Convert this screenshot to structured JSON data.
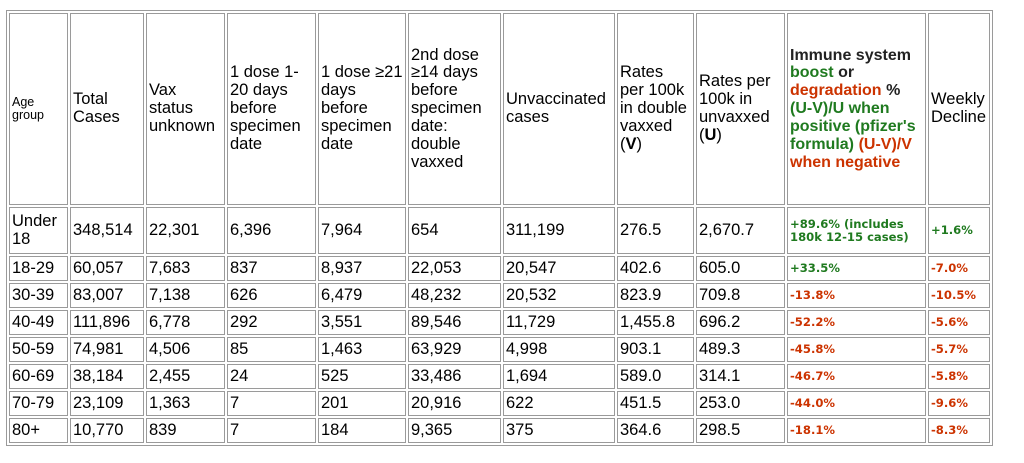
{
  "headers": {
    "age_group": "Age group",
    "total_cases": "Total Cases",
    "vax_unknown": "Vax status unknown",
    "dose1_early": "1 dose 1-20 days before specimen date",
    "dose1_late": "1 dose ≥21 days before specimen date",
    "dose2": "2nd dose ≥14 days before specimen date: double vaxxed",
    "unvaccinated": "Unvaccinated cases",
    "rate_v_prefix": "Rates per 100k in double vaxxed (",
    "rate_v_letter": "V",
    "rate_v_suffix": ")",
    "rate_u_prefix": "Rates per 100k in unvaxxed (",
    "rate_u_letter": "U",
    "rate_u_suffix": ")",
    "immune_1": "Immune system",
    "immune_2": "boost",
    "immune_3": "or",
    "immune_4": "degradation",
    "immune_5": "%",
    "immune_6": "(U-V)/U when positive (pfizer's formula)",
    "immune_7": "(U-V)/V when negative",
    "weekly_decline": "Weekly Decline"
  },
  "rows": [
    {
      "age": "Under 18",
      "total": "348,514",
      "unknown": "22,301",
      "d1a": "6,396",
      "d1b": "7,964",
      "d2": "654",
      "unvax": "311,199",
      "rate_v": "276.5",
      "rate_u": "2,670.7",
      "immune": "+89.6% (includes 180k 12-15 cases)",
      "immune_color": "green",
      "weekly": "+1.6%",
      "weekly_color": "green"
    },
    {
      "age": "18-29",
      "total": "60,057",
      "unknown": "7,683",
      "d1a": "837",
      "d1b": "8,937",
      "d2": "22,053",
      "unvax": "20,547",
      "rate_v": "402.6",
      "rate_u": "605.0",
      "immune": "+33.5%",
      "immune_color": "green",
      "weekly": "-7.0%",
      "weekly_color": "red"
    },
    {
      "age": "30-39",
      "total": "83,007",
      "unknown": "7,138",
      "d1a": "626",
      "d1b": "6,479",
      "d2": "48,232",
      "unvax": "20,532",
      "rate_v": "823.9",
      "rate_u": "709.8",
      "immune": "-13.8%",
      "immune_color": "red",
      "weekly": "-10.5%",
      "weekly_color": "red"
    },
    {
      "age": "40-49",
      "total": "111,896",
      "unknown": "6,778",
      "d1a": "292",
      "d1b": "3,551",
      "d2": "89,546",
      "unvax": "11,729",
      "rate_v": "1,455.8",
      "rate_u": "696.2",
      "immune": "-52.2%",
      "immune_color": "red",
      "weekly": "-5.6%",
      "weekly_color": "red"
    },
    {
      "age": "50-59",
      "total": "74,981",
      "unknown": "4,506",
      "d1a": "85",
      "d1b": "1,463",
      "d2": "63,929",
      "unvax": "4,998",
      "rate_v": "903.1",
      "rate_u": "489.3",
      "immune": "-45.8%",
      "immune_color": "red",
      "weekly": "-5.7%",
      "weekly_color": "red"
    },
    {
      "age": "60-69",
      "total": "38,184",
      "unknown": "2,455",
      "d1a": "24",
      "d1b": "525",
      "d2": "33,486",
      "unvax": "1,694",
      "rate_v": "589.0",
      "rate_u": "314.1",
      "immune": "-46.7%",
      "immune_color": "red",
      "weekly": "-5.8%",
      "weekly_color": "red"
    },
    {
      "age": "70-79",
      "total": "23,109",
      "unknown": "1,363",
      "d1a": "7",
      "d1b": "201",
      "d2": "20,916",
      "unvax": "622",
      "rate_v": "451.5",
      "rate_u": "253.0",
      "immune": "-44.0%",
      "immune_color": "red",
      "weekly": "-9.6%",
      "weekly_color": "red"
    },
    {
      "age": "80+",
      "total": "10,770",
      "unknown": "839",
      "d1a": "7",
      "d1b": "184",
      "d2": "9,365",
      "unvax": "375",
      "rate_v": "364.6",
      "rate_u": "298.5",
      "immune": "-18.1%",
      "immune_color": "red",
      "weekly": "-8.3%",
      "weekly_color": "red"
    }
  ],
  "colors": {
    "green": "#1f7a1f",
    "red": "#cc3300"
  }
}
